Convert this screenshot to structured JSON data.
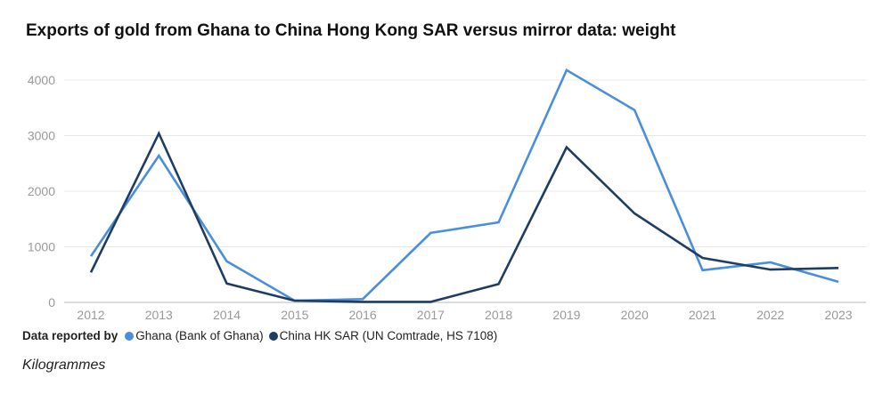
{
  "chart_data": {
    "type": "line",
    "title": "Exports of gold from Ghana to China Hong Kong SAR versus mirror data: weight",
    "xlabel": "",
    "ylabel": "Kilogrammes",
    "x": [
      "2012",
      "2013",
      "2014",
      "2015",
      "2016",
      "2017",
      "2018",
      "2019",
      "2020",
      "2021",
      "2022",
      "2023"
    ],
    "ylim": [
      0,
      4000
    ],
    "yticks": [
      "0",
      "1000",
      "2000",
      "3000",
      "4000"
    ],
    "grid": true,
    "legend_title": "Data reported by",
    "legend_position": "bottom-left",
    "series": [
      {
        "name": "Ghana (Bank of Ghana)",
        "color": "#4a8fdc",
        "values": [
          830,
          2640,
          740,
          30,
          60,
          1250,
          1440,
          4180,
          3460,
          580,
          720,
          370
        ]
      },
      {
        "name": "China HK SAR (UN Comtrade, HS 7108)",
        "color": "#1f3d63",
        "values": [
          540,
          3040,
          340,
          30,
          10,
          10,
          330,
          2790,
          1600,
          800,
          590,
          620
        ]
      }
    ]
  },
  "unit_label": "Kilogrammes"
}
